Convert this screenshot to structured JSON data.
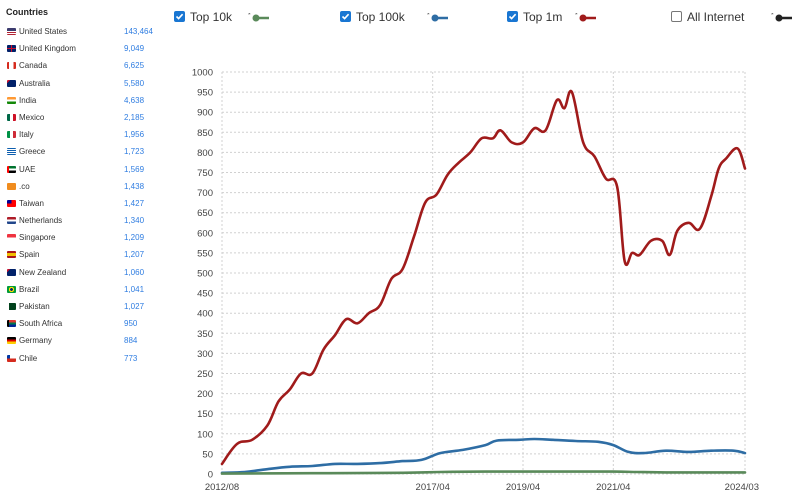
{
  "countries": {
    "title": "Countries",
    "items": [
      {
        "name": "United States",
        "count": "143,464",
        "flag": "us"
      },
      {
        "name": "United Kingdom",
        "count": "9,049",
        "flag": "uk"
      },
      {
        "name": "Canada",
        "count": "6,625",
        "flag": "ca"
      },
      {
        "name": "Australia",
        "count": "5,580",
        "flag": "au"
      },
      {
        "name": "India",
        "count": "4,638",
        "flag": "in"
      },
      {
        "name": "Mexico",
        "count": "2,185",
        "flag": "mx"
      },
      {
        "name": "Italy",
        "count": "1,956",
        "flag": "it"
      },
      {
        "name": "Greece",
        "count": "1,723",
        "flag": "gr"
      },
      {
        "name": "UAE",
        "count": "1,569",
        "flag": "ae"
      },
      {
        "name": ".co",
        "count": "1,438",
        "flag": "co"
      },
      {
        "name": "Taiwan",
        "count": "1,427",
        "flag": "tw"
      },
      {
        "name": "Netherlands",
        "count": "1,340",
        "flag": "nl"
      },
      {
        "name": "Singapore",
        "count": "1,209",
        "flag": "sg"
      },
      {
        "name": "Spain",
        "count": "1,207",
        "flag": "es"
      },
      {
        "name": "New Zealand",
        "count": "1,060",
        "flag": "nz"
      },
      {
        "name": "Brazil",
        "count": "1,041",
        "flag": "br"
      },
      {
        "name": "Pakistan",
        "count": "1,027",
        "flag": "pk"
      },
      {
        "name": "South Africa",
        "count": "950",
        "flag": "za"
      },
      {
        "name": "Germany",
        "count": "884",
        "flag": "de"
      },
      {
        "name": "Chile",
        "count": "773",
        "flag": "cl"
      }
    ]
  },
  "legend": [
    {
      "label": "Top 10k",
      "checked": true,
      "color": "#5a8a5a"
    },
    {
      "label": "Top 100k",
      "checked": true,
      "color": "#2e6da4"
    },
    {
      "label": "Top 1m",
      "checked": true,
      "color": "#a01b1b"
    },
    {
      "label": "All Internet",
      "checked": false,
      "color": "#222222"
    }
  ],
  "chart_data": {
    "type": "line",
    "x_ticks": [
      "2012/08",
      "2017/04",
      "2019/04",
      "2021/04",
      "2024/03"
    ],
    "y_ticks": [
      0,
      50,
      100,
      150,
      200,
      250,
      300,
      350,
      400,
      450,
      500,
      550,
      600,
      650,
      700,
      750,
      800,
      850,
      900,
      950,
      1000
    ],
    "ylim": [
      0,
      1000
    ],
    "x_range": [
      "2012/08",
      "2024/03"
    ],
    "grid": true,
    "series": [
      {
        "name": "Top 1m",
        "color": "#a01b1b",
        "points": [
          [
            "2012/08",
            25
          ],
          [
            "2012/12",
            75
          ],
          [
            "2013/04",
            85
          ],
          [
            "2013/08",
            120
          ],
          [
            "2013/11",
            180
          ],
          [
            "2014/02",
            210
          ],
          [
            "2014/05",
            250
          ],
          [
            "2014/08",
            250
          ],
          [
            "2014/11",
            310
          ],
          [
            "2015/02",
            345
          ],
          [
            "2015/05",
            385
          ],
          [
            "2015/08",
            375
          ],
          [
            "2015/11",
            400
          ],
          [
            "2016/02",
            420
          ],
          [
            "2016/05",
            485
          ],
          [
            "2016/08",
            510
          ],
          [
            "2016/11",
            590
          ],
          [
            "2017/02",
            675
          ],
          [
            "2017/05",
            695
          ],
          [
            "2017/08",
            745
          ],
          [
            "2017/11",
            775
          ],
          [
            "2018/02",
            800
          ],
          [
            "2018/05",
            835
          ],
          [
            "2018/08",
            835
          ],
          [
            "2018/10",
            855
          ],
          [
            "2019/01",
            825
          ],
          [
            "2019/04",
            825
          ],
          [
            "2019/07",
            860
          ],
          [
            "2019/10",
            855
          ],
          [
            "2020/01",
            930
          ],
          [
            "2020/03",
            910
          ],
          [
            "2020/05",
            950
          ],
          [
            "2020/08",
            825
          ],
          [
            "2020/11",
            790
          ],
          [
            "2021/02",
            735
          ],
          [
            "2021/05",
            715
          ],
          [
            "2021/07",
            530
          ],
          [
            "2021/09",
            550
          ],
          [
            "2021/11",
            545
          ],
          [
            "2022/02",
            580
          ],
          [
            "2022/05",
            580
          ],
          [
            "2022/07",
            545
          ],
          [
            "2022/09",
            605
          ],
          [
            "2022/12",
            625
          ],
          [
            "2023/03",
            610
          ],
          [
            "2023/06",
            690
          ],
          [
            "2023/08",
            760
          ],
          [
            "2023/10",
            785
          ],
          [
            "2024/01",
            810
          ],
          [
            "2024/03",
            760
          ]
        ]
      },
      {
        "name": "Top 100k",
        "color": "#2e6da4",
        "points": [
          [
            "2012/08",
            3
          ],
          [
            "2013/02",
            5
          ],
          [
            "2013/08",
            12
          ],
          [
            "2014/02",
            18
          ],
          [
            "2014/08",
            20
          ],
          [
            "2015/02",
            25
          ],
          [
            "2015/08",
            25
          ],
          [
            "2016/02",
            27
          ],
          [
            "2016/08",
            32
          ],
          [
            "2017/01",
            35
          ],
          [
            "2017/06",
            52
          ],
          [
            "2017/12",
            60
          ],
          [
            "2018/06",
            72
          ],
          [
            "2018/09",
            83
          ],
          [
            "2019/03",
            85
          ],
          [
            "2019/07",
            87
          ],
          [
            "2019/12",
            85
          ],
          [
            "2020/06",
            82
          ],
          [
            "2020/12",
            80
          ],
          [
            "2021/04",
            72
          ],
          [
            "2021/08",
            55
          ],
          [
            "2021/12",
            52
          ],
          [
            "2022/06",
            58
          ],
          [
            "2022/12",
            55
          ],
          [
            "2023/06",
            58
          ],
          [
            "2023/12",
            58
          ],
          [
            "2024/03",
            52
          ]
        ]
      },
      {
        "name": "Top 10k",
        "color": "#5a8a5a",
        "points": [
          [
            "2012/08",
            1
          ],
          [
            "2014/08",
            2
          ],
          [
            "2016/08",
            3
          ],
          [
            "2017/06",
            5
          ],
          [
            "2018/06",
            6
          ],
          [
            "2019/06",
            6
          ],
          [
            "2020/06",
            6
          ],
          [
            "2021/04",
            6
          ],
          [
            "2021/10",
            5
          ],
          [
            "2022/06",
            4
          ],
          [
            "2023/06",
            4
          ],
          [
            "2024/03",
            4
          ]
        ]
      }
    ]
  }
}
